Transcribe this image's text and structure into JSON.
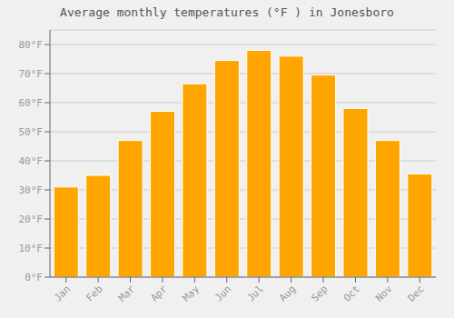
{
  "chart_data": {
    "type": "bar",
    "title": "Average monthly temperatures (°F ) in Jonesboro",
    "categories": [
      "Jan",
      "Feb",
      "Mar",
      "Apr",
      "May",
      "Jun",
      "Jul",
      "Aug",
      "Sep",
      "Oct",
      "Nov",
      "Dec"
    ],
    "values": [
      31,
      35,
      47,
      57,
      66.5,
      74.5,
      78,
      76,
      69.5,
      58,
      47,
      35.5
    ],
    "color": "#FFA500",
    "ylim": [
      0,
      85
    ],
    "yticks": [
      {
        "value": 0,
        "label": "0°F"
      },
      {
        "value": 10,
        "label": "10°F"
      },
      {
        "value": 20,
        "label": "20°F"
      },
      {
        "value": 30,
        "label": "30°F"
      },
      {
        "value": 40,
        "label": "40°F"
      },
      {
        "value": 50,
        "label": "50°F"
      },
      {
        "value": 60,
        "label": "60°F"
      },
      {
        "value": 70,
        "label": "70°F"
      },
      {
        "value": 80,
        "label": "80°F"
      }
    ],
    "grid": true
  }
}
